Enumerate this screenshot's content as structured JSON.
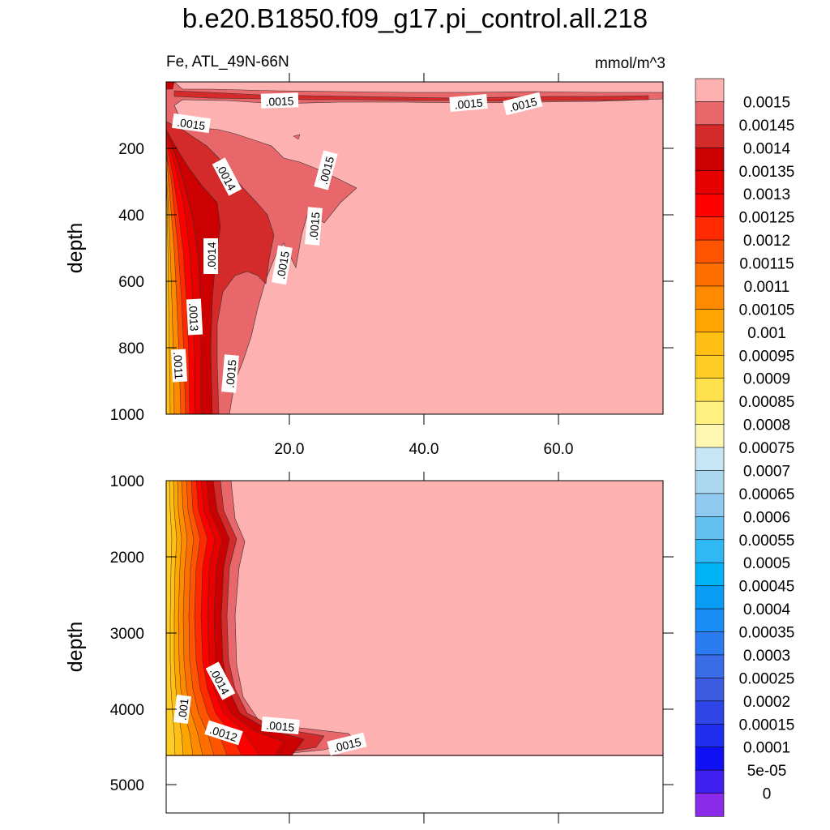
{
  "title": "b.e20.B1850.f09_g17.pi_control.all.218",
  "subtitle": {
    "left": "Fe, ATL_49N-66N",
    "right": "mmol/m^3"
  },
  "chart_data": [
    {
      "type": "contour",
      "panel": "upper",
      "ylabel": "depth",
      "xlabel": "",
      "xlim": [
        0,
        75
      ],
      "ylim": [
        0,
        1000
      ],
      "x_ticks": [
        "20.0",
        "40.0",
        "60.0"
      ],
      "y_ticks": [
        "200",
        "400",
        "600",
        "800",
        "1000"
      ],
      "contour_labels": [
        ".0015",
        ".0015",
        ".0015",
        ".0015",
        ".0014",
        ".0015",
        ".0015",
        ".0014",
        ".0015",
        ".0013",
        ".0011",
        ".0015"
      ]
    },
    {
      "type": "contour",
      "panel": "lower",
      "ylabel": "depth",
      "xlabel": "",
      "xlim": [
        0,
        75
      ],
      "ylim": [
        1000,
        5400
      ],
      "y_ticks": [
        "1000",
        "2000",
        "3000",
        "4000",
        "5000"
      ],
      "contour_labels": [
        ".0014",
        ".001",
        ".0012",
        ".0015",
        ".0015"
      ]
    }
  ],
  "colorbar": {
    "labels": [
      "0.0015",
      "0.00145",
      "0.0014",
      "0.00135",
      "0.0013",
      "0.00125",
      "0.0012",
      "0.00115",
      "0.0011",
      "0.00105",
      "0.001",
      "0.00095",
      "0.0009",
      "0.00085",
      "0.0008",
      "0.00075",
      "0.0007",
      "0.00065",
      "0.0006",
      "0.00055",
      "0.0005",
      "0.00045",
      "0.0004",
      "0.00035",
      "0.0003",
      "0.00025",
      "0.0002",
      "0.00015",
      "0.0001",
      "5e-05",
      "0"
    ],
    "colors": [
      "#fdb1b1",
      "#e8676b",
      "#d42a2a",
      "#cc0000",
      "#e60000",
      "#ff0000",
      "#ff2a00",
      "#ff5500",
      "#ff6f00",
      "#ff8a00",
      "#ffa500",
      "#ffbf14",
      "#ffcc26",
      "#ffe14d",
      "#fff080",
      "#fff8b3",
      "#c6e6f5",
      "#acd8ef",
      "#90caf0",
      "#64c0ef",
      "#30b8f5",
      "#00b4f5",
      "#0a9cf5",
      "#1a8cf5",
      "#2a7cf0",
      "#3a6ce8",
      "#3b5ce0",
      "#2f45e8",
      "#1f2ef0",
      "#1010f5",
      "#4020f0",
      "#8a2be8"
    ]
  }
}
